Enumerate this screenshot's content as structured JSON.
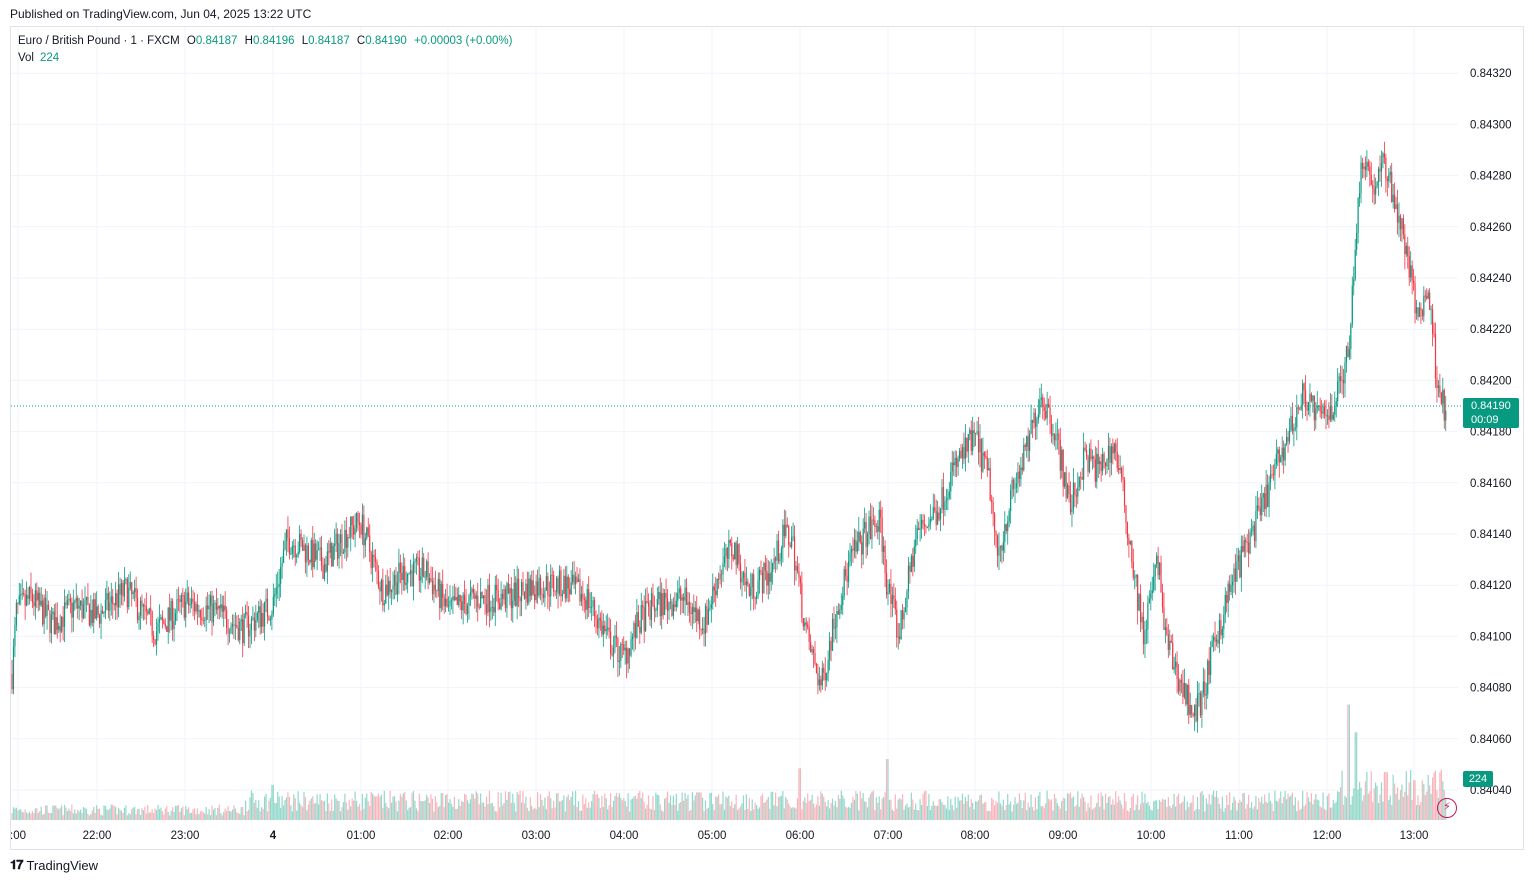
{
  "header": {
    "published": "Published on TradingView.com, Jun 04, 2025 13:22 UTC"
  },
  "legend": {
    "symbol": "Euro / British Pound · 1 · FXCM",
    "open_label": "O",
    "open": "0.84187",
    "high_label": "H",
    "high": "0.84196",
    "low_label": "L",
    "low": "0.84187",
    "close_label": "C",
    "close": "0.84190",
    "change": "+0.00003 (+0.00%)",
    "vol_label": "Vol",
    "vol": "224"
  },
  "price_tag": {
    "price": "0.84190",
    "countdown": "00:09"
  },
  "vol_tag": "224",
  "footer": {
    "brand": "TradingView",
    "logo": "TV-logo-icon"
  },
  "colors": {
    "up": "#089981",
    "down": "#f23645",
    "grid": "#f0f3fa",
    "accent": "#089981",
    "bolt": "#c2185b"
  },
  "chart_data": {
    "type": "candlestick",
    "title": "Euro / British Pound · 1 · FXCM",
    "ylim": [
      0.84025,
      0.84335
    ],
    "y_ticks": [
      "0.84040",
      "0.84060",
      "0.84080",
      "0.84100",
      "0.84120",
      "0.84140",
      "0.84160",
      "0.84180",
      "0.84200",
      "0.84220",
      "0.84240",
      "0.84260",
      "0.84280",
      "0.84300",
      "0.84320"
    ],
    "x_ticks": [
      ":00",
      "22:00",
      "23:00",
      "4",
      "01:00",
      "02:00",
      "03:00",
      "04:00",
      "05:00",
      "06:00",
      "07:00",
      "08:00",
      "09:00",
      "10:00",
      "11:00",
      "12:00",
      "13:00"
    ],
    "last_price": 0.8419,
    "price_path": [
      [
        "21:00",
        0.8407
      ],
      [
        "21:05",
        0.8411
      ],
      [
        "21:15",
        0.84115
      ],
      [
        "21:30",
        0.84105
      ],
      [
        "21:45",
        0.84112
      ],
      [
        "22:00",
        0.84108
      ],
      [
        "22:20",
        0.84118
      ],
      [
        "22:40",
        0.84102
      ],
      [
        "23:00",
        0.84113
      ],
      [
        "23:20",
        0.8411
      ],
      [
        "23:40",
        0.84103
      ],
      [
        "00:00",
        0.84112
      ],
      [
        "00:10",
        0.84138
      ],
      [
        "00:20",
        0.84135
      ],
      [
        "00:35",
        0.84128
      ],
      [
        "00:50",
        0.8414
      ],
      [
        "01:00",
        0.84145
      ],
      [
        "01:15",
        0.84118
      ],
      [
        "01:30",
        0.84125
      ],
      [
        "01:45",
        0.84125
      ],
      [
        "02:00",
        0.8411
      ],
      [
        "02:20",
        0.84115
      ],
      [
        "02:40",
        0.84115
      ],
      [
        "03:00",
        0.8412
      ],
      [
        "03:20",
        0.8412
      ],
      [
        "03:35",
        0.84115
      ],
      [
        "03:50",
        0.84098
      ],
      [
        "04:00",
        0.84092
      ],
      [
        "04:10",
        0.84105
      ],
      [
        "04:20",
        0.84112
      ],
      [
        "04:40",
        0.84115
      ],
      [
        "04:55",
        0.84105
      ],
      [
        "05:05",
        0.84125
      ],
      [
        "05:15",
        0.84135
      ],
      [
        "05:25",
        0.84118
      ],
      [
        "05:40",
        0.84125
      ],
      [
        "05:50",
        0.8414
      ],
      [
        "05:55",
        0.84138
      ],
      [
        "06:05",
        0.841
      ],
      [
        "06:15",
        0.8408
      ],
      [
        "06:25",
        0.8411
      ],
      [
        "06:35",
        0.8413
      ],
      [
        "06:45",
        0.8414
      ],
      [
        "06:55",
        0.84145
      ],
      [
        "07:00",
        0.8412
      ],
      [
        "07:08",
        0.841
      ],
      [
        "07:20",
        0.8414
      ],
      [
        "07:35",
        0.8415
      ],
      [
        "07:45",
        0.84165
      ],
      [
        "08:00",
        0.84178
      ],
      [
        "08:10",
        0.8416
      ],
      [
        "08:15",
        0.8413
      ],
      [
        "08:25",
        0.84155
      ],
      [
        "08:35",
        0.84172
      ],
      [
        "08:45",
        0.84195
      ],
      [
        "08:55",
        0.8418
      ],
      [
        "09:05",
        0.8415
      ],
      [
        "09:15",
        0.8417
      ],
      [
        "09:25",
        0.84165
      ],
      [
        "09:35",
        0.84175
      ],
      [
        "09:40",
        0.8416
      ],
      [
        "09:45",
        0.8414
      ],
      [
        "09:55",
        0.841
      ],
      [
        "10:05",
        0.8413
      ],
      [
        "10:10",
        0.841
      ],
      [
        "10:20",
        0.84082
      ],
      [
        "10:30",
        0.8407
      ],
      [
        "10:35",
        0.84075
      ],
      [
        "10:45",
        0.841
      ],
      [
        "10:55",
        0.8412
      ],
      [
        "11:05",
        0.84135
      ],
      [
        "11:15",
        0.84148
      ],
      [
        "11:25",
        0.84165
      ],
      [
        "11:35",
        0.8418
      ],
      [
        "11:45",
        0.84195
      ],
      [
        "11:55",
        0.84185
      ],
      [
        "12:05",
        0.8419
      ],
      [
        "12:15",
        0.8421
      ],
      [
        "12:20",
        0.84255
      ],
      [
        "12:25",
        0.8429
      ],
      [
        "12:32",
        0.84275
      ],
      [
        "12:40",
        0.84285
      ],
      [
        "12:47",
        0.8427
      ],
      [
        "12:55",
        0.8425
      ],
      [
        "13:02",
        0.84225
      ],
      [
        "13:10",
        0.84235
      ],
      [
        "13:15",
        0.84205
      ],
      [
        "13:20",
        0.8419
      ]
    ],
    "volume": {
      "baseline": 120,
      "spikes": [
        [
          "00:00",
          380
        ],
        [
          "06:00",
          560
        ],
        [
          "07:00",
          660
        ],
        [
          "12:15",
          1250
        ],
        [
          "12:20",
          950
        ],
        [
          "12:40",
          520
        ],
        [
          "13:00",
          430
        ]
      ],
      "last": 224
    }
  }
}
